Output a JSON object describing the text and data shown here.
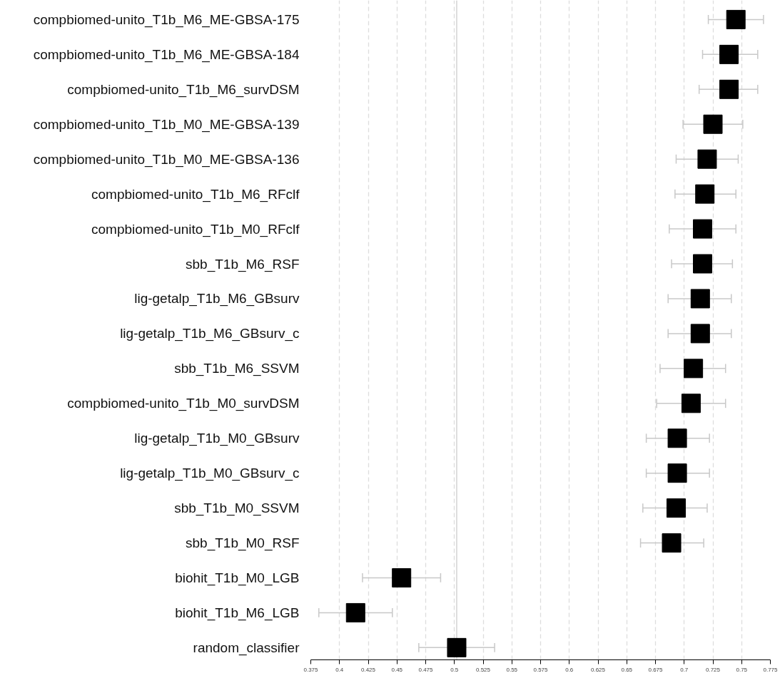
{
  "chart_data": {
    "type": "scatter",
    "orientation": "horizontal",
    "marker": "square",
    "categories": [
      "compbiomed-unito_T1b_M6_ME-GBSA-175",
      "compbiomed-unito_T1b_M6_ME-GBSA-184",
      "compbiomed-unito_T1b_M6_survDSM",
      "compbiomed-unito_T1b_M0_ME-GBSA-139",
      "compbiomed-unito_T1b_M0_ME-GBSA-136",
      "compbiomed-unito_T1b_M6_RFclf",
      "compbiomed-unito_T1b_M0_RFclf",
      "sbb_T1b_M6_RSF",
      "lig-getalp_T1b_M6_GBsurv",
      "lig-getalp_T1b_M6_GBsurv_c",
      "sbb_T1b_M6_SSVM",
      "compbiomed-unito_T1b_M0_survDSM",
      "lig-getalp_T1b_M0_GBsurv",
      "lig-getalp_T1b_M0_GBsurv_c",
      "sbb_T1b_M0_SSVM",
      "sbb_T1b_M0_RSF",
      "biohit_T1b_M0_LGB",
      "biohit_T1b_M6_LGB",
      "random_classifier"
    ],
    "series": [
      {
        "color": "#000000",
        "values": [
          0.745,
          0.739,
          0.739,
          0.725,
          0.72,
          0.718,
          0.716,
          0.716,
          0.714,
          0.714,
          0.708,
          0.706,
          0.694,
          0.694,
          0.693,
          0.689,
          0.454,
          0.414,
          0.502
        ],
        "errors": [
          [
            0.721,
            0.769
          ],
          [
            0.716,
            0.764
          ],
          [
            0.713,
            0.764
          ],
          [
            0.699,
            0.751
          ],
          [
            0.693,
            0.747
          ],
          [
            0.692,
            0.745
          ],
          [
            0.687,
            0.745
          ],
          [
            0.689,
            0.742
          ],
          [
            0.686,
            0.741
          ],
          [
            0.686,
            0.741
          ],
          [
            0.679,
            0.736
          ],
          [
            0.676,
            0.736
          ],
          [
            0.667,
            0.722
          ],
          [
            0.667,
            0.722
          ],
          [
            0.664,
            0.72
          ],
          [
            0.662,
            0.717
          ],
          [
            0.42,
            0.488
          ],
          [
            0.382,
            0.446
          ],
          [
            0.469,
            0.535
          ]
        ]
      }
    ],
    "xlim": [
      0.375,
      0.775
    ],
    "xticks": [
      0.375,
      0.4,
      0.425,
      0.45,
      0.475,
      0.5,
      0.525,
      0.55,
      0.575,
      0.6,
      0.625,
      0.65,
      0.675,
      0.7,
      0.725,
      0.75,
      0.775
    ],
    "grid": "x",
    "ref_lines": [
      {
        "axis": "x",
        "value": 0.502,
        "color": "#d3d3d3"
      }
    ]
  }
}
